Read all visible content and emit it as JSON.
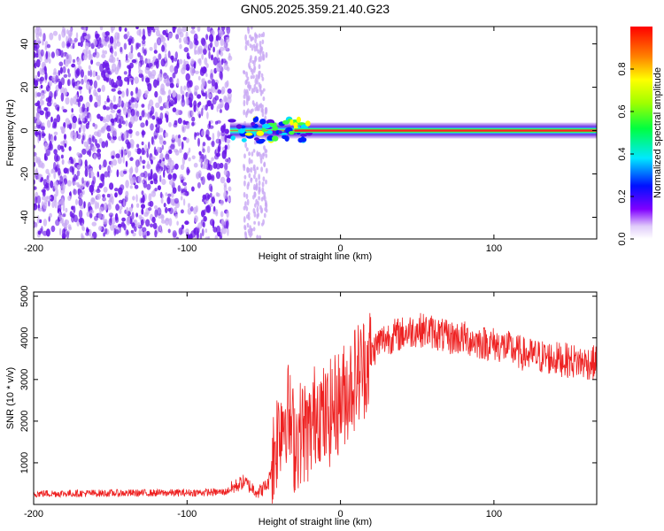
{
  "title": "GN05.2025.359.21.40.G23",
  "colors": {
    "snr_line": "#ee2222",
    "noise_purple": "#6a18e8",
    "noise_light": "#c8a8f4"
  },
  "chart_data": [
    {
      "type": "heatmap",
      "name": "spectrogram",
      "xlabel": "Height of straight line (km)",
      "ylabel": "Frequency (Hz)",
      "xlim": [
        -200,
        167
      ],
      "ylim": [
        -50,
        48
      ],
      "xticks": [
        -200,
        -100,
        0,
        100
      ],
      "yticks": [
        -40,
        -20,
        0,
        20,
        40
      ],
      "noise_region_km": [
        -200,
        -72
      ],
      "sparse_noise_km": [
        -63,
        -48
      ],
      "signal_start_km": -72,
      "colorbar": {
        "label": "Normalized spectral amplitude",
        "range": [
          0,
          1
        ],
        "ticks": [
          0.0,
          0.2,
          0.4,
          0.6,
          0.8
        ],
        "tick_labels": [
          "0.0",
          "0.2",
          "0.4",
          "0.6",
          "0.8"
        ]
      }
    },
    {
      "type": "line",
      "name": "snr",
      "xlabel": "Height of straight line (km)",
      "ylabel": "SNR (10 * v/v)",
      "xlim": [
        -200,
        167
      ],
      "ylim": [
        0,
        5100
      ],
      "xticks": [
        -200,
        -100,
        0,
        100
      ],
      "yticks": [
        1000,
        2000,
        3000,
        4000,
        5000
      ],
      "series": [
        {
          "name": "SNR",
          "x": [
            -200,
            -150,
            -100,
            -75,
            -63,
            -58,
            -53,
            -47,
            -40,
            -35,
            -30,
            -25,
            -20,
            -15,
            -10,
            -5,
            0,
            5,
            10,
            15,
            20,
            25,
            30,
            40,
            50,
            60,
            70,
            80,
            90,
            100,
            110,
            120,
            130,
            140,
            150,
            160,
            167
          ],
          "y": [
            260,
            270,
            280,
            300,
            550,
            400,
            300,
            500,
            1900,
            2300,
            1500,
            1800,
            1700,
            2400,
            2000,
            2300,
            2500,
            2800,
            3100,
            3300,
            3600,
            3900,
            4000,
            4100,
            4200,
            4150,
            4000,
            4000,
            3900,
            3850,
            3750,
            3600,
            3550,
            3500,
            3450,
            3400,
            3400
          ]
        }
      ]
    }
  ]
}
